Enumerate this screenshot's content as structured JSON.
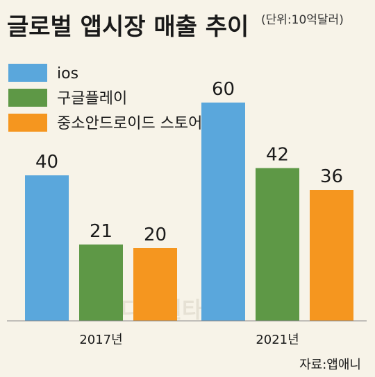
{
  "chart_data": {
    "type": "bar",
    "title": "글로벌 앱시장 매출 추이",
    "unit": "(단위:10억달러)",
    "categories": [
      "2017년",
      "2021년"
    ],
    "series": [
      {
        "name": "ios",
        "color": "#5aa7dc",
        "values": [
          40,
          60
        ]
      },
      {
        "name": "구글플레이",
        "color": "#5e9846",
        "values": [
          21,
          42
        ]
      },
      {
        "name": "중소안드로이드 스토어",
        "color": "#f5961f",
        "values": [
          20,
          36
        ]
      }
    ],
    "ylim": [
      0,
      60
    ],
    "grid": false,
    "legend_position": "top-left",
    "source": "자료:앱애니",
    "watermark": "디지털타임스"
  }
}
